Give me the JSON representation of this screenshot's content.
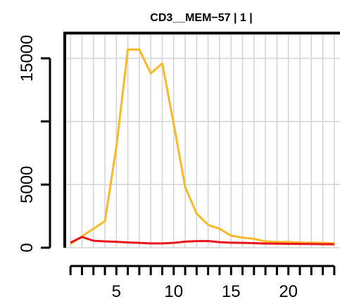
{
  "chart_data": {
    "type": "line",
    "title": "CD3__MEM−57  |  1  |",
    "xlabel": "",
    "ylabel": "",
    "xlim": [
      0.5,
      24.5
    ],
    "ylim": [
      0,
      17000
    ],
    "x_ticks": [
      5,
      10,
      15,
      20
    ],
    "y_ticks": [
      0,
      5000,
      15000
    ],
    "grid": true,
    "legend": "none",
    "x": [
      1,
      2,
      3,
      4,
      5,
      6,
      7,
      8,
      9,
      10,
      11,
      12,
      13,
      14,
      15,
      16,
      17,
      18,
      19,
      20,
      21,
      22,
      23,
      24
    ],
    "series": [
      {
        "color": "#FBB829",
        "values": [
          300,
          900,
          1500,
          2100,
          8000,
          15700,
          15700,
          13800,
          14600,
          9800,
          4800,
          2700,
          1800,
          1500,
          950,
          800,
          700,
          500,
          450,
          450,
          400,
          400,
          380,
          350
        ]
      },
      {
        "color": "#E8161B",
        "values": [
          400,
          850,
          550,
          500,
          470,
          420,
          380,
          340,
          340,
          380,
          480,
          520,
          530,
          440,
          400,
          380,
          360,
          330,
          320,
          310,
          300,
          290,
          280,
          270
        ]
      }
    ]
  }
}
